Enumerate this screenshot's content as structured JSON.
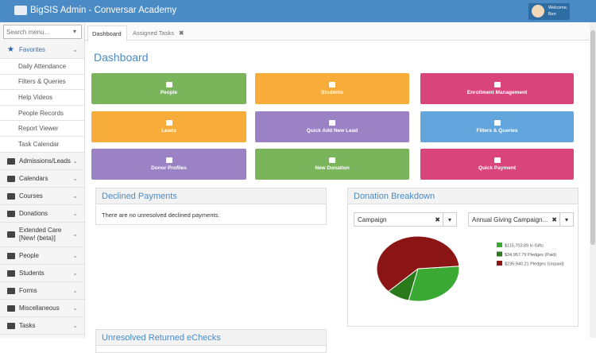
{
  "header": {
    "title": "BigSIS Admin - Conversar Academy",
    "welcome": "Welcome,",
    "user": "Ben"
  },
  "sidebar": {
    "search_placeholder": "Search menu...",
    "favorites": {
      "label": "Favorites",
      "items": [
        "Daily Attendance",
        "Filters & Queries",
        "Help Videos",
        "People Records",
        "Report Viewer",
        "Task Calendar"
      ]
    },
    "menu": [
      "Admissions/Leads",
      "Calendars",
      "Courses",
      "Donations",
      "Extended Care [New! (beta)]",
      "People",
      "Students",
      "Forms",
      "Miscellaneous",
      "Tasks"
    ]
  },
  "tabs": [
    "Dashboard",
    "Assigned Tasks"
  ],
  "page_title": "Dashboard",
  "tiles": [
    "People",
    "Students",
    "Enrollment Management",
    "Leads",
    "Quick Add New Lead",
    "Filters & Queries",
    "Donor Profiles",
    "New Donation",
    "Quick Payment"
  ],
  "declined_payments": {
    "title": "Declined Payments",
    "message": "There are no unresolved declined payments."
  },
  "donation_breakdown": {
    "title": "Donation Breakdown",
    "filters": [
      "Campaign",
      "Annual Giving Campaign..."
    ],
    "chart": {
      "type": "pie",
      "categories": [
        "in Gifts",
        "Pledges (Paid)",
        "Pledges (Unpaid)"
      ],
      "values": [
        115703.89,
        34957.79,
        235940.21
      ],
      "value_labels": [
        "$115,703.89 in Gifts",
        "$34,957.79 Pledges (Paid)",
        "$235,940.21 Pledges (Unpaid)"
      ],
      "colors": [
        "#3aaa35",
        "#2a7a1c",
        "#8b1515"
      ]
    }
  },
  "returned_echecks": {
    "title": "Unresolved Returned eChecks"
  }
}
